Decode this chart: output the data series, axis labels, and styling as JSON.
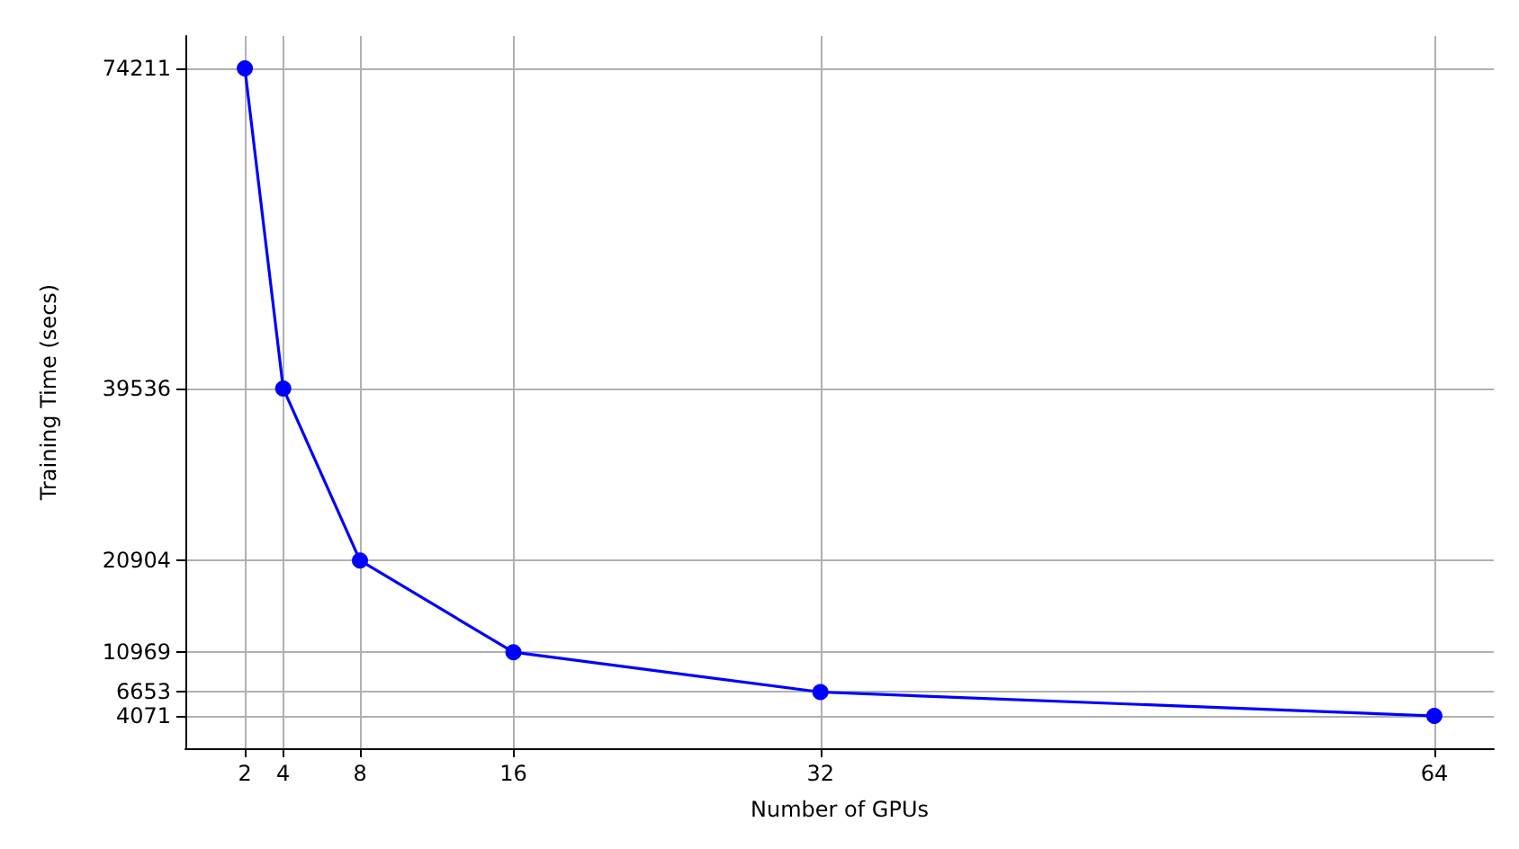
{
  "chart_data": {
    "type": "line",
    "xlabel": "Number of GPUs",
    "ylabel": "Training Time (secs)",
    "x": [
      2,
      4,
      8,
      16,
      32,
      64
    ],
    "values": [
      74211,
      39536,
      20904,
      10969,
      6653,
      4071
    ],
    "color": "#0000ff",
    "xlim": [
      -1.1,
      67.1
    ],
    "ylim": [
      564,
      77718
    ],
    "xticks": [
      2,
      4,
      8,
      16,
      32,
      64
    ],
    "yticks": [
      4071,
      6653,
      10969,
      20904,
      39536,
      74211
    ],
    "grid": true,
    "marker": "circle",
    "line_style": "solid"
  }
}
